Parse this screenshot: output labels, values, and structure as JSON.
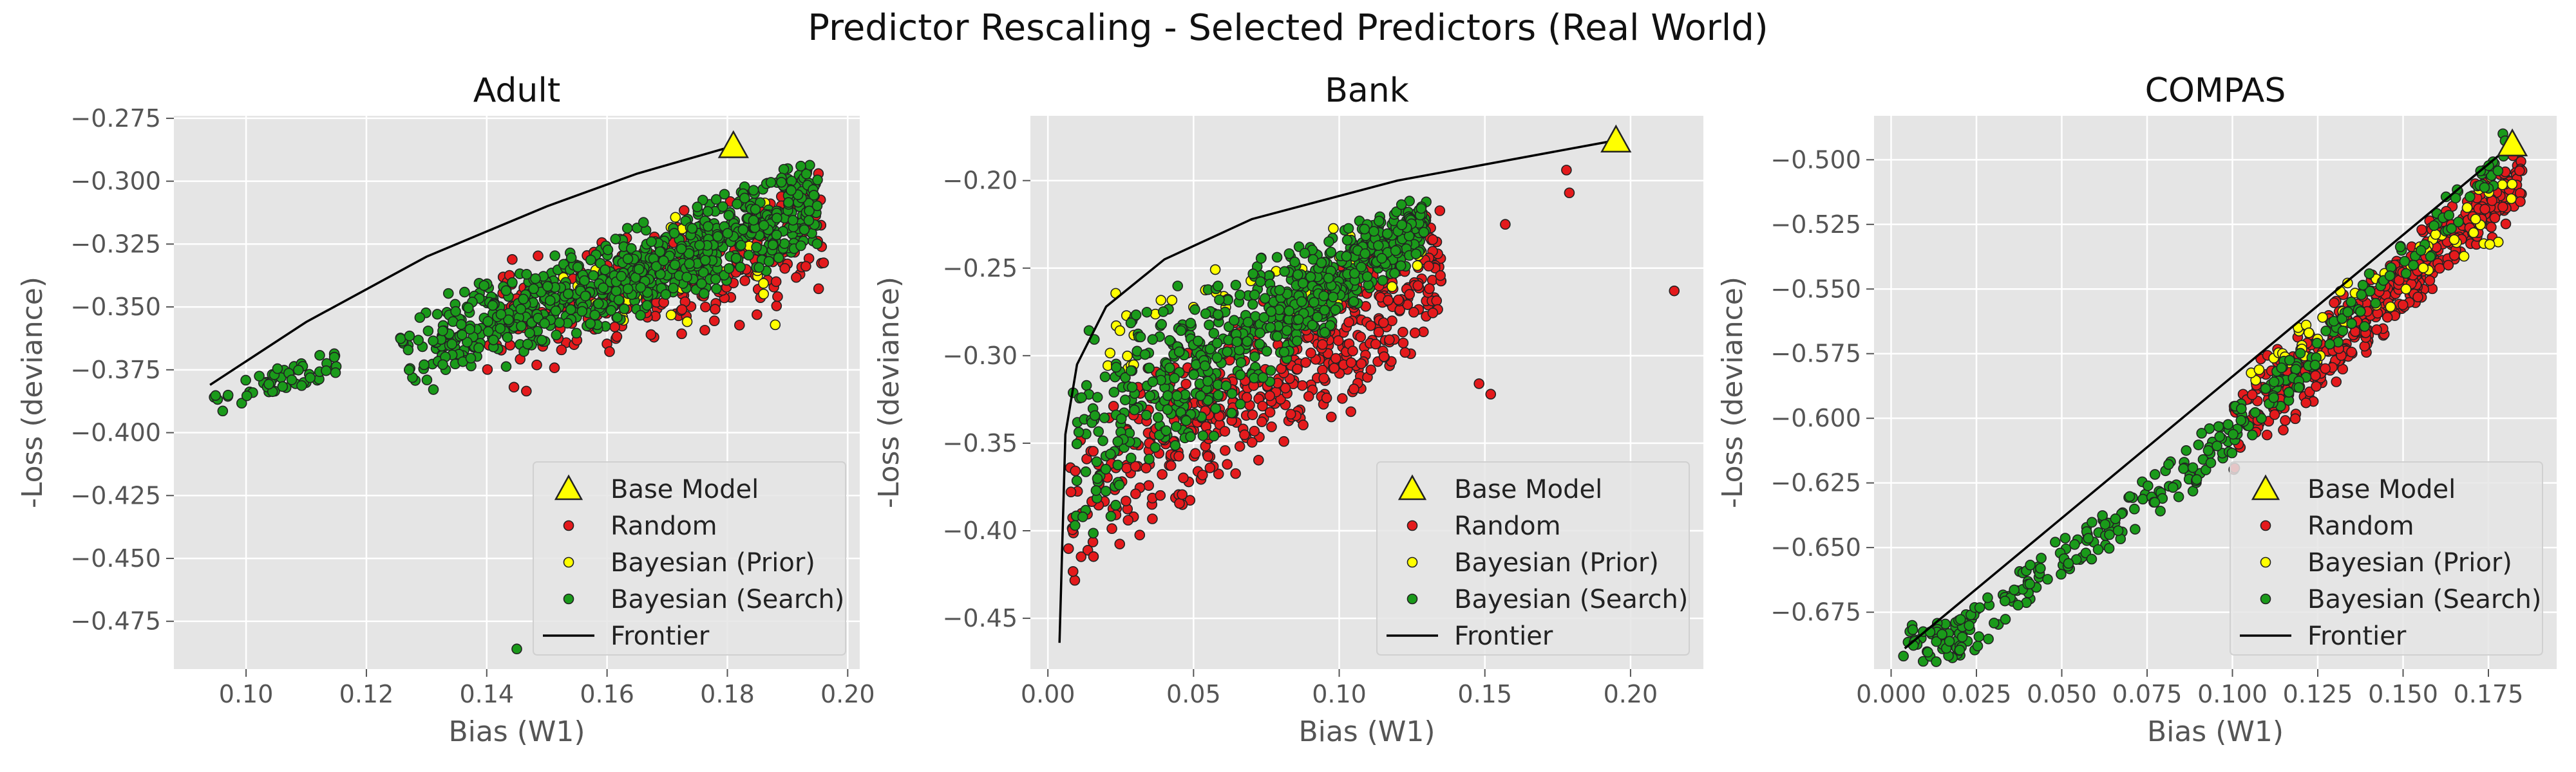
{
  "figure": {
    "title": "Predictor Rescaling - Selected Predictors (Real World)"
  },
  "colors": {
    "plot_bg": "#e5e5e5",
    "grid": "#ffffff",
    "random": "#e41a1c",
    "bayes_prior": "#ffff00",
    "bayes_search": "#1a9a1a",
    "base_model": "#ffff00",
    "frontier": "#000000",
    "text": "#555555",
    "title_text": "#111111"
  },
  "chart_data": [
    {
      "type": "scatter",
      "title": "Adult",
      "xlabel": "Bias (W1)",
      "ylabel": "-Loss (deviance)",
      "xlim": [
        0.088,
        0.202
      ],
      "ylim": [
        -0.494,
        -0.274
      ],
      "xticks": [
        0.1,
        0.12,
        0.14,
        0.16,
        0.18,
        0.2
      ],
      "xtick_labels": [
        "0.10",
        "0.12",
        "0.14",
        "0.16",
        "0.18",
        "0.20"
      ],
      "yticks": [
        -0.275,
        -0.3,
        -0.325,
        -0.35,
        -0.375,
        -0.4,
        -0.425,
        -0.45,
        -0.475
      ],
      "ytick_labels": [
        "−0.275",
        "−0.300",
        "−0.325",
        "−0.350",
        "−0.375",
        "−0.400",
        "−0.425",
        "−0.450",
        "−0.475"
      ],
      "grid": true,
      "legend_position": "lower-right",
      "base_model": {
        "x": 0.181,
        "y": -0.286
      },
      "frontier": [
        [
          0.094,
          -0.381
        ],
        [
          0.11,
          -0.356
        ],
        [
          0.13,
          -0.33
        ],
        [
          0.15,
          -0.31
        ],
        [
          0.165,
          -0.297
        ],
        [
          0.181,
          -0.286
        ]
      ],
      "random": {
        "n": 320,
        "seed": 11,
        "x_range": [
          0.14,
          0.196
        ],
        "y_range": [
          -0.42,
          -0.295
        ],
        "band": {
          "at_min_x": [
            -0.39,
            -0.33
          ],
          "at_max_x": [
            -0.35,
            -0.295
          ]
        }
      },
      "bayesian_prior": {
        "n": 40,
        "seed": 23,
        "x_range": [
          0.15,
          0.188
        ],
        "y_range": [
          -0.4,
          -0.295
        ],
        "band": {
          "at_min_x": [
            -0.37,
            -0.32
          ],
          "at_max_x": [
            -0.36,
            -0.295
          ]
        }
      },
      "bayesian_search": {
        "n": 800,
        "seed": 37,
        "x_range": [
          0.125,
          0.195
        ],
        "y_range": [
          -0.4,
          -0.288
        ],
        "band": {
          "at_min_x": [
            -0.39,
            -0.35
          ],
          "at_max_x": [
            -0.33,
            -0.288
          ]
        },
        "extra_clusters": [
          {
            "x_range": [
              0.094,
              0.115
            ],
            "y_range": [
              -0.388,
              -0.372
            ],
            "n": 55
          }
        ],
        "outliers": [
          [
            0.145,
            -0.486
          ]
        ]
      }
    },
    {
      "type": "scatter",
      "title": "Bank",
      "xlabel": "Bias (W1)",
      "ylabel": "-Loss (deviance)",
      "xlim": [
        -0.006,
        0.225
      ],
      "ylim": [
        -0.479,
        -0.163
      ],
      "xticks": [
        0.0,
        0.05,
        0.1,
        0.15,
        0.2
      ],
      "xtick_labels": [
        "0.00",
        "0.05",
        "0.10",
        "0.15",
        "0.20"
      ],
      "yticks": [
        -0.2,
        -0.25,
        -0.3,
        -0.35,
        -0.4,
        -0.45
      ],
      "ytick_labels": [
        "−0.20",
        "−0.25",
        "−0.30",
        "−0.35",
        "−0.40",
        "−0.45"
      ],
      "grid": true,
      "legend_position": "lower-right",
      "base_model": {
        "x": 0.195,
        "y": -0.177
      },
      "frontier": [
        [
          0.004,
          -0.464
        ],
        [
          0.006,
          -0.345
        ],
        [
          0.01,
          -0.305
        ],
        [
          0.02,
          -0.272
        ],
        [
          0.04,
          -0.245
        ],
        [
          0.07,
          -0.222
        ],
        [
          0.12,
          -0.2
        ],
        [
          0.195,
          -0.177
        ]
      ],
      "random": {
        "n": 520,
        "seed": 53,
        "x_range": [
          0.005,
          0.135
        ],
        "y_range": [
          -0.46,
          -0.2
        ],
        "band": {
          "at_min_x": [
            -0.44,
            -0.33
          ],
          "at_max_x": [
            -0.3,
            -0.205
          ]
        },
        "outliers": [
          [
            0.215,
            -0.263
          ],
          [
            0.148,
            -0.316
          ],
          [
            0.152,
            -0.322
          ],
          [
            0.178,
            -0.194
          ],
          [
            0.179,
            -0.207
          ],
          [
            0.157,
            -0.225
          ],
          [
            0.104,
            -0.332
          ],
          [
            0.126,
            -0.287
          ]
        ]
      },
      "bayesian_prior": {
        "n": 50,
        "seed": 71,
        "x_range": [
          0.008,
          0.13
        ],
        "y_range": [
          -0.37,
          -0.205
        ],
        "band": {
          "at_min_x": [
            -0.33,
            -0.27
          ],
          "at_max_x": [
            -0.26,
            -0.205
          ]
        }
      },
      "bayesian_search": {
        "n": 700,
        "seed": 89,
        "x_range": [
          0.008,
          0.13
        ],
        "y_range": [
          -0.43,
          -0.205
        ],
        "band": {
          "at_min_x": [
            -0.42,
            -0.28
          ],
          "at_max_x": [
            -0.24,
            -0.205
          ]
        }
      }
    },
    {
      "type": "scatter",
      "title": "COMPAS",
      "xlabel": "Bias (W1)",
      "ylabel": "-Loss (deviance)",
      "xlim": [
        -0.005,
        0.195
      ],
      "ylim": [
        -0.697,
        -0.483
      ],
      "xticks": [
        0.0,
        0.025,
        0.05,
        0.075,
        0.1,
        0.125,
        0.15,
        0.175
      ],
      "xtick_labels": [
        "0.000",
        "0.025",
        "0.050",
        "0.075",
        "0.100",
        "0.125",
        "0.150",
        "0.175"
      ],
      "yticks": [
        -0.5,
        -0.525,
        -0.55,
        -0.575,
        -0.6,
        -0.625,
        -0.65,
        -0.675
      ],
      "ytick_labels": [
        "−0.500",
        "−0.525",
        "−0.550",
        "−0.575",
        "−0.600",
        "−0.625",
        "−0.650",
        "−0.675"
      ],
      "grid": true,
      "legend_position": "lower-right",
      "base_model": {
        "x": 0.182,
        "y": -0.494
      },
      "frontier": [
        [
          0.004,
          -0.689
        ],
        [
          0.182,
          -0.494
        ]
      ],
      "random": {
        "n": 480,
        "seed": 101,
        "x_range": [
          0.1,
          0.185
        ],
        "y_range": [
          -0.64,
          -0.493
        ],
        "band": {
          "at_min_x": [
            -0.625,
            -0.585
          ],
          "at_max_x": [
            -0.52,
            -0.493
          ]
        }
      },
      "bayesian_prior": {
        "n": 60,
        "seed": 113,
        "x_range": [
          0.105,
          0.182
        ],
        "y_range": [
          -0.61,
          -0.495
        ],
        "band": {
          "at_min_x": [
            -0.595,
            -0.575
          ],
          "at_max_x": [
            -0.53,
            -0.497
          ]
        }
      },
      "bayesian_search": {
        "n": 330,
        "seed": 131,
        "x_range": [
          0.005,
          0.185
        ],
        "y_range": [
          -0.69,
          -0.493
        ],
        "curve": [
          [
            0.004,
            -0.689
          ],
          [
            0.02,
            -0.685
          ],
          [
            0.04,
            -0.665
          ],
          [
            0.06,
            -0.645
          ],
          [
            0.08,
            -0.628
          ],
          [
            0.1,
            -0.605
          ],
          [
            0.12,
            -0.58
          ],
          [
            0.15,
            -0.54
          ],
          [
            0.182,
            -0.496
          ]
        ],
        "spread": 0.008
      }
    }
  ],
  "legend": {
    "items": [
      "Base Model",
      "Random",
      "Bayesian (Prior)",
      "Bayesian (Search)",
      "Frontier"
    ]
  }
}
